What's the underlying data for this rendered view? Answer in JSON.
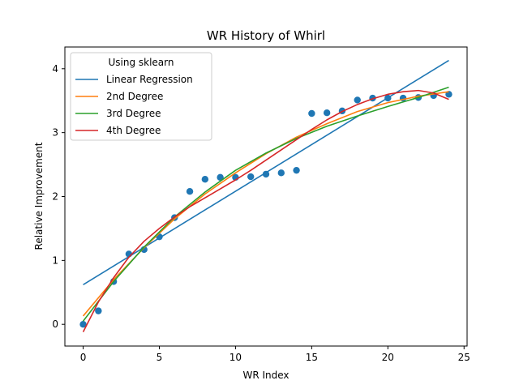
{
  "chart_data": {
    "type": "scatter",
    "title": "WR History of Whirl",
    "xlabel": "WR Index",
    "ylabel": "Relative Improvement",
    "xlim": [
      -1.2,
      25.2
    ],
    "ylim": [
      -0.34,
      4.34
    ],
    "x_ticks": [
      0,
      5,
      10,
      15,
      20,
      25
    ],
    "y_ticks": [
      0,
      1,
      2,
      3,
      4
    ],
    "grid": false,
    "legend": {
      "title": "Using sklearn",
      "placement": "top-left",
      "entries": [
        "Linear Regression",
        "2nd Degree",
        "3rd Degree",
        "4th Degree"
      ]
    },
    "points": {
      "color": "#1f77b4",
      "x": [
        0,
        1,
        2,
        3,
        4,
        5,
        6,
        7,
        8,
        9,
        10,
        11,
        12,
        13,
        14,
        15,
        16,
        17,
        18,
        19,
        20,
        21,
        22,
        23,
        24
      ],
      "y": [
        0.0,
        0.21,
        0.67,
        1.1,
        1.17,
        1.37,
        1.67,
        2.08,
        2.27,
        2.3,
        2.3,
        2.31,
        2.35,
        2.37,
        2.41,
        3.3,
        3.31,
        3.34,
        3.51,
        3.54,
        3.54,
        3.54,
        3.55,
        3.58,
        3.6
      ]
    },
    "series": [
      {
        "name": "Linear Regression",
        "color": "#1f77b4",
        "x": [
          0,
          24
        ],
        "y": [
          0.62,
          4.13
        ]
      },
      {
        "name": "2nd Degree",
        "color": "#ff7f0e",
        "x": [
          0,
          2,
          4,
          6,
          8,
          10,
          12,
          14,
          16,
          18,
          20,
          22,
          24
        ],
        "y": [
          0.13,
          0.7,
          1.2,
          1.65,
          2.04,
          2.37,
          2.67,
          2.93,
          3.14,
          3.33,
          3.47,
          3.57,
          3.64
        ]
      },
      {
        "name": "3rd Degree",
        "color": "#2ca02c",
        "x": [
          0,
          2,
          4,
          6,
          8,
          10,
          12,
          14,
          16,
          18,
          20,
          22,
          24
        ],
        "y": [
          0.05,
          0.67,
          1.21,
          1.68,
          2.07,
          2.41,
          2.68,
          2.91,
          3.1,
          3.26,
          3.41,
          3.55,
          3.71
        ]
      },
      {
        "name": "4th Degree",
        "color": "#d62728",
        "x": [
          0,
          1,
          2,
          3,
          4,
          5,
          6,
          7,
          8,
          9,
          10,
          11,
          12,
          13,
          14,
          15,
          16,
          17,
          18,
          19,
          20,
          21,
          22,
          23,
          24
        ],
        "y": [
          -0.12,
          0.35,
          0.73,
          1.05,
          1.3,
          1.5,
          1.68,
          1.84,
          1.98,
          2.12,
          2.26,
          2.41,
          2.57,
          2.73,
          2.89,
          3.05,
          3.2,
          3.33,
          3.44,
          3.53,
          3.6,
          3.64,
          3.66,
          3.62,
          3.52
        ]
      }
    ]
  }
}
